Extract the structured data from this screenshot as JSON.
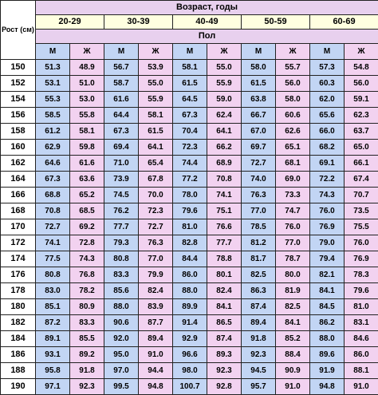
{
  "table": {
    "corner_label": "Рост (см)",
    "age_header": "Возраст, годы",
    "sex_header": "Пол",
    "age_groups": [
      "20-29",
      "30-39",
      "40-49",
      "50-59",
      "60-69"
    ],
    "sex_labels": [
      "М",
      "Ж",
      "М",
      "Ж",
      "М",
      "Ж",
      "М",
      "Ж",
      "М",
      "Ж"
    ],
    "colors": {
      "male": "#c2d5f4",
      "female": "#f2d2f0",
      "header": "#e8d0ee",
      "age_row": "#ffffe0"
    },
    "rows": [
      {
        "height": "150",
        "values": [
          "51.3",
          "48.9",
          "56.7",
          "53.9",
          "58.1",
          "55.0",
          "58.0",
          "55.7",
          "57.3",
          "54.8"
        ]
      },
      {
        "height": "152",
        "values": [
          "53.1",
          "51.0",
          "58.7",
          "55.0",
          "61.5",
          "55.9",
          "61.5",
          "56.0",
          "60.3",
          "56.0"
        ]
      },
      {
        "height": "154",
        "values": [
          "55.3",
          "53.0",
          "61.6",
          "55.9",
          "64.5",
          "59.0",
          "63.8",
          "58.0",
          "62.0",
          "59.1"
        ]
      },
      {
        "height": "156",
        "values": [
          "58.5",
          "55.8",
          "64.4",
          "58.1",
          "67.3",
          "62.4",
          "66.7",
          "60.6",
          "65.6",
          "62.3"
        ]
      },
      {
        "height": "158",
        "values": [
          "61.2",
          "58.1",
          "67.3",
          "61.5",
          "70.4",
          "64.1",
          "67.0",
          "62.6",
          "66.0",
          "63.7"
        ]
      },
      {
        "height": "160",
        "values": [
          "62.9",
          "59.8",
          "69.4",
          "64.1",
          "72.3",
          "66.2",
          "69.7",
          "65.1",
          "68.2",
          "65.0"
        ]
      },
      {
        "height": "162",
        "values": [
          "64.6",
          "61.6",
          "71.0",
          "65.4",
          "74.4",
          "68.9",
          "72.7",
          "68.1",
          "69.1",
          "66.1"
        ]
      },
      {
        "height": "164",
        "values": [
          "67.3",
          "63.6",
          "73.9",
          "67.8",
          "77.2",
          "70.8",
          "74.0",
          "69.0",
          "72.2",
          "67.4"
        ]
      },
      {
        "height": "166",
        "values": [
          "68.8",
          "65.2",
          "74.5",
          "70.0",
          "78.0",
          "74.1",
          "76.3",
          "73.3",
          "74.3",
          "70.7"
        ]
      },
      {
        "height": "168",
        "values": [
          "70.8",
          "68.5",
          "76.2",
          "72.3",
          "79.6",
          "75.1",
          "77.0",
          "74.7",
          "76.0",
          "73.5"
        ]
      },
      {
        "height": "170",
        "values": [
          "72.7",
          "69.2",
          "77.7",
          "72.7",
          "81.0",
          "76.6",
          "78.5",
          "76.0",
          "76.9",
          "75.5"
        ]
      },
      {
        "height": "172",
        "values": [
          "74.1",
          "72.8",
          "79.3",
          "76.3",
          "82.8",
          "77.7",
          "81.2",
          "77.0",
          "79.0",
          "76.0"
        ]
      },
      {
        "height": "174",
        "values": [
          "77.5",
          "74.3",
          "80.8",
          "77.0",
          "84.4",
          "78.8",
          "81.7",
          "78.7",
          "79.4",
          "76.9"
        ]
      },
      {
        "height": "176",
        "values": [
          "80.8",
          "76.8",
          "83.3",
          "79.9",
          "86.0",
          "80.1",
          "82.5",
          "80.0",
          "82.1",
          "78.3"
        ]
      },
      {
        "height": "178",
        "values": [
          "83.0",
          "78.2",
          "85.6",
          "82.4",
          "88.0",
          "82.4",
          "86.3",
          "81.9",
          "84.1",
          "79.6"
        ]
      },
      {
        "height": "180",
        "values": [
          "85.1",
          "80.9",
          "88.0",
          "83.9",
          "89.9",
          "84.1",
          "87.4",
          "82.5",
          "84.5",
          "81.0"
        ]
      },
      {
        "height": "182",
        "values": [
          "87.2",
          "83.3",
          "90.6",
          "87.7",
          "91.4",
          "86.5",
          "89.4",
          "84.1",
          "86.2",
          "83.1"
        ]
      },
      {
        "height": "184",
        "values": [
          "89.1",
          "85.5",
          "92.0",
          "89.4",
          "92.9",
          "87.4",
          "91.8",
          "85.2",
          "88.0",
          "84.6"
        ]
      },
      {
        "height": "186",
        "values": [
          "93.1",
          "89.2",
          "95.0",
          "91.0",
          "96.6",
          "89.3",
          "92.3",
          "88.4",
          "89.6",
          "86.0"
        ]
      },
      {
        "height": "188",
        "values": [
          "95.8",
          "91.8",
          "97.0",
          "94.4",
          "98.0",
          "92.3",
          "94.5",
          "90.9",
          "91.9",
          "88.1"
        ]
      },
      {
        "height": "190",
        "values": [
          "97.1",
          "92.3",
          "99.5",
          "94.8",
          "100.7",
          "92.8",
          "95.7",
          "91.0",
          "94.8",
          "91.0"
        ]
      }
    ]
  }
}
